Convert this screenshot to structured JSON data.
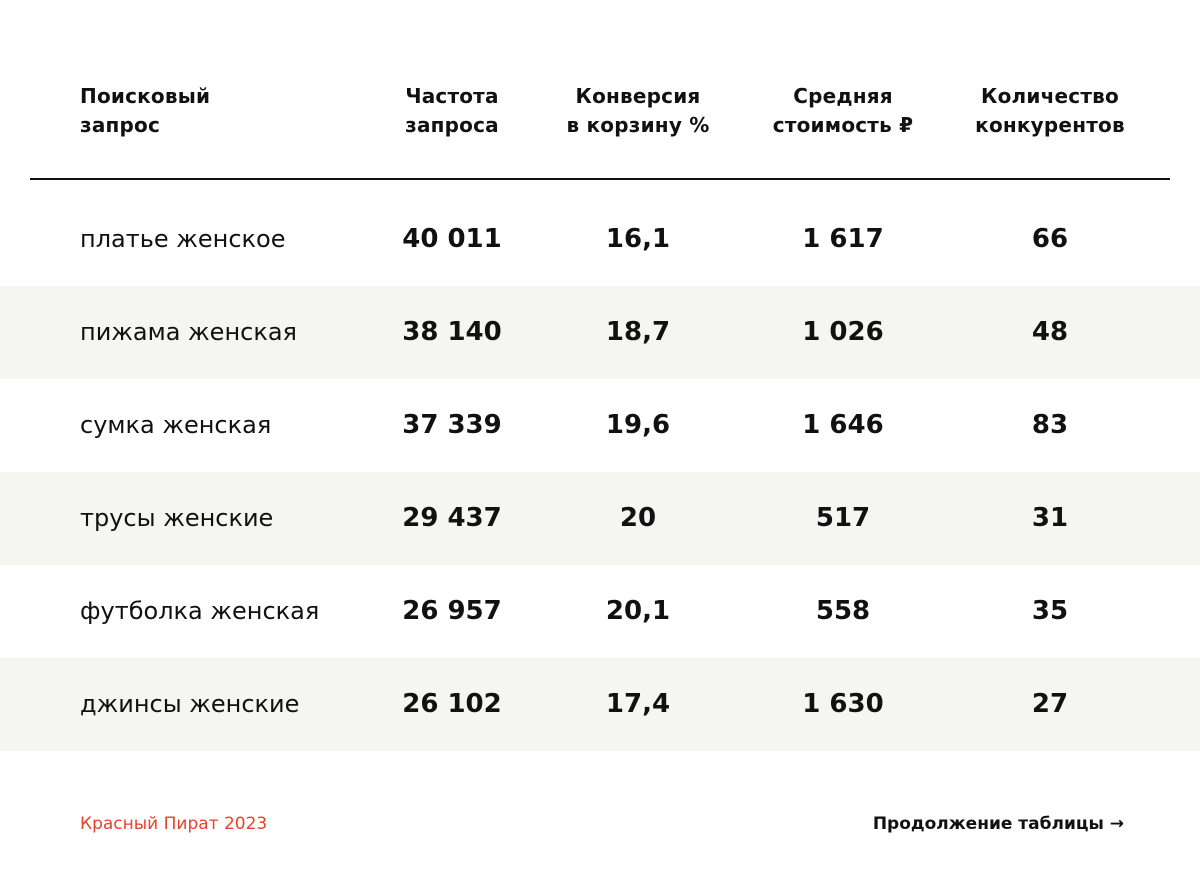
{
  "table": {
    "headers": {
      "query": "Поисковый\nзапрос",
      "frequency": "Частота\nзапроса",
      "conversion": "Конверсия\nв корзину %",
      "avg_price": "Средняя\nстоимость ₽",
      "competitors": "Количество\nконкурентов"
    },
    "rows": [
      {
        "query": "платье женское",
        "frequency": "40 011",
        "conversion": "16,1",
        "avg_price": "1 617",
        "competitors": "66"
      },
      {
        "query": "пижама женская",
        "frequency": "38 140",
        "conversion": "18,7",
        "avg_price": "1 026",
        "competitors": "48"
      },
      {
        "query": "сумка женская",
        "frequency": "37 339",
        "conversion": "19,6",
        "avg_price": "1 646",
        "competitors": "83"
      },
      {
        "query": "трусы женские",
        "frequency": "29 437",
        "conversion": "20",
        "avg_price": "517",
        "competitors": "31"
      },
      {
        "query": "футболка женская",
        "frequency": "26 957",
        "conversion": "20,1",
        "avg_price": "558",
        "competitors": "35"
      },
      {
        "query": "джинсы женские",
        "frequency": "26 102",
        "conversion": "17,4",
        "avg_price": "1 630",
        "competitors": "27"
      }
    ]
  },
  "footer": {
    "credit": "Красный Пират 2023",
    "continue_link": "Продолжение таблицы →"
  },
  "colors": {
    "accent": "#e8412c",
    "row_shade": "#f5f6f2",
    "text": "#111111"
  }
}
